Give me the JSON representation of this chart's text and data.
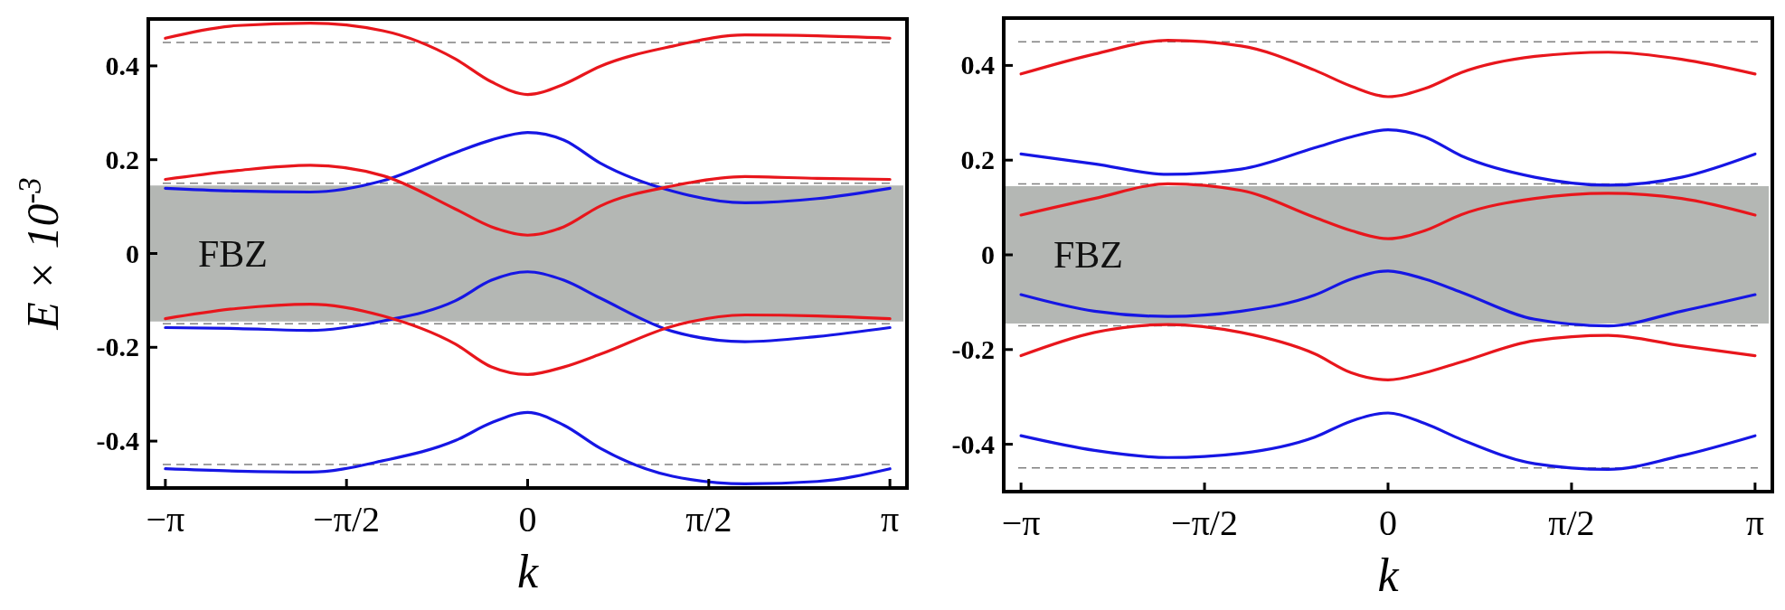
{
  "chart_data": [
    {
      "type": "line",
      "ylabel": "E × 10$^{-3}$",
      "xlabel": "k",
      "x": [
        -3.142,
        -2.513,
        -1.885,
        -1.257,
        -0.628,
        -0.314,
        0,
        0.314,
        0.628,
        1.257,
        1.885,
        2.513,
        3.142
      ],
      "xlim": [
        -3.29,
        3.29
      ],
      "ylim": [
        -0.5,
        0.5
      ],
      "xticks": [
        {
          "value": -3.142,
          "label": "−π"
        },
        {
          "value": -1.571,
          "label": "−π/2"
        },
        {
          "value": 0,
          "label": "0"
        },
        {
          "value": 1.571,
          "label": "π/2"
        },
        {
          "value": 3.142,
          "label": "π"
        }
      ],
      "yticks": [
        -0.4,
        -0.2,
        0,
        0.2,
        0.4
      ],
      "line_style": "solid",
      "marker": "none",
      "series": [
        {
          "color": "#e8161c",
          "values": [
            0.459,
            0.486,
            0.491,
            0.475,
            0.415,
            0.366,
            0.339,
            0.361,
            0.399,
            0.442,
            0.466,
            0.464,
            0.459
          ]
        },
        {
          "color": "#1616e4",
          "values": [
            0.139,
            0.133,
            0.131,
            0.155,
            0.215,
            0.242,
            0.258,
            0.242,
            0.193,
            0.133,
            0.108,
            0.117,
            0.139
          ]
        },
        {
          "color": "#e8161c",
          "values": [
            0.158,
            0.177,
            0.188,
            0.166,
            0.095,
            0.057,
            0.039,
            0.057,
            0.101,
            0.144,
            0.164,
            0.16,
            0.158
          ]
        },
        {
          "color": "#1616e4",
          "values": [
            -0.158,
            -0.16,
            -0.164,
            -0.144,
            -0.101,
            -0.057,
            -0.039,
            -0.057,
            -0.095,
            -0.166,
            -0.188,
            -0.177,
            -0.158
          ]
        },
        {
          "color": "#e8161c",
          "values": [
            -0.139,
            -0.117,
            -0.108,
            -0.133,
            -0.193,
            -0.242,
            -0.258,
            -0.242,
            -0.215,
            -0.155,
            -0.131,
            -0.133,
            -0.139
          ]
        },
        {
          "color": "#1616e4",
          "values": [
            -0.459,
            -0.464,
            -0.466,
            -0.442,
            -0.399,
            -0.361,
            -0.339,
            -0.366,
            -0.415,
            -0.475,
            -0.491,
            -0.486,
            -0.459
          ]
        }
      ],
      "ref_lines": [
        {
          "axis": "y",
          "value": 0.45,
          "color": "#808080",
          "line_style": "dashed"
        },
        {
          "axis": "y",
          "value": 0.15,
          "color": "#808080",
          "line_style": "dashed"
        },
        {
          "axis": "y",
          "value": -0.15,
          "color": "#808080",
          "line_style": "dashed"
        },
        {
          "axis": "y",
          "value": -0.45,
          "color": "#808080",
          "line_style": "dashed"
        }
      ],
      "bands": [
        {
          "axis": "y",
          "from": -0.145,
          "to": 0.145,
          "label": "FBZ",
          "color": "#b4b7b4"
        }
      ]
    },
    {
      "type": "line",
      "xlabel": "k",
      "x": [
        -3.142,
        -2.513,
        -1.885,
        -1.257,
        -0.628,
        -0.314,
        0,
        0.314,
        0.628,
        1.257,
        1.885,
        2.513,
        3.142
      ],
      "xlim": [
        -3.29,
        3.29
      ],
      "ylim": [
        -0.5,
        0.5
      ],
      "xticks": [
        {
          "value": -3.142,
          "label": "−π"
        },
        {
          "value": -1.571,
          "label": "−π/2"
        },
        {
          "value": 0,
          "label": "0"
        },
        {
          "value": 1.571,
          "label": "π/2"
        },
        {
          "value": 3.142,
          "label": "π"
        }
      ],
      "yticks": [
        -0.4,
        -0.2,
        0,
        0.2,
        0.4
      ],
      "line_style": "solid",
      "marker": "none",
      "series": [
        {
          "color": "#e8161c",
          "values": [
            0.382,
            0.424,
            0.453,
            0.441,
            0.39,
            0.356,
            0.334,
            0.351,
            0.385,
            0.419,
            0.428,
            0.413,
            0.382
          ]
        },
        {
          "color": "#1616e4",
          "values": [
            0.213,
            0.192,
            0.17,
            0.181,
            0.226,
            0.249,
            0.264,
            0.249,
            0.209,
            0.164,
            0.147,
            0.164,
            0.213
          ]
        },
        {
          "color": "#e8161c",
          "values": [
            0.084,
            0.119,
            0.15,
            0.136,
            0.079,
            0.051,
            0.034,
            0.051,
            0.085,
            0.119,
            0.13,
            0.119,
            0.084
          ]
        },
        {
          "color": "#1616e4",
          "values": [
            -0.084,
            -0.119,
            -0.13,
            -0.119,
            -0.085,
            -0.051,
            -0.034,
            -0.051,
            -0.079,
            -0.136,
            -0.15,
            -0.119,
            -0.084
          ]
        },
        {
          "color": "#e8161c",
          "values": [
            -0.213,
            -0.164,
            -0.147,
            -0.164,
            -0.209,
            -0.249,
            -0.264,
            -0.249,
            -0.226,
            -0.181,
            -0.17,
            -0.192,
            -0.213
          ]
        },
        {
          "color": "#1616e4",
          "values": [
            -0.382,
            -0.413,
            -0.428,
            -0.419,
            -0.385,
            -0.351,
            -0.334,
            -0.356,
            -0.39,
            -0.441,
            -0.453,
            -0.424,
            -0.382
          ]
        }
      ],
      "ref_lines": [
        {
          "axis": "y",
          "value": 0.45,
          "color": "#808080",
          "line_style": "dashed"
        },
        {
          "axis": "y",
          "value": 0.15,
          "color": "#808080",
          "line_style": "dashed"
        },
        {
          "axis": "y",
          "value": -0.15,
          "color": "#808080",
          "line_style": "dashed"
        },
        {
          "axis": "y",
          "value": -0.45,
          "color": "#808080",
          "line_style": "dashed"
        }
      ],
      "bands": [
        {
          "axis": "y",
          "from": -0.145,
          "to": 0.145,
          "label": "FBZ",
          "color": "#b4b7b4"
        }
      ]
    }
  ]
}
